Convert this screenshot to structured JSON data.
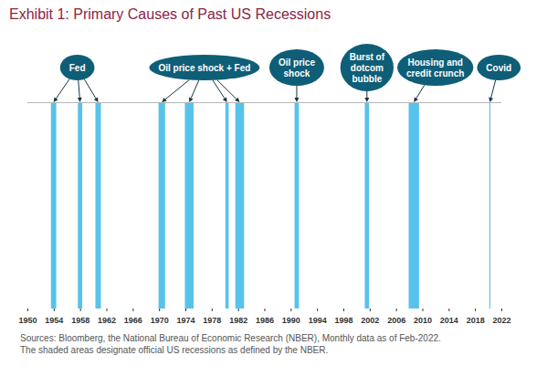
{
  "chart_data": {
    "type": "bar",
    "title": "Exhibit 1: Primary Causes of Past US Recessions",
    "caption": [
      "Sources: Bloomberg, the National Bureau of Economic Research (NBER), Monthly data as of Feb-2022.",
      "The shaded areas designate official US recessions as defined by the NBER."
    ],
    "recessions": [
      {
        "start": 1953.58,
        "end": 1954.38
      },
      {
        "start": 1957.67,
        "end": 1958.33
      },
      {
        "start": 1960.33,
        "end": 1961.17
      },
      {
        "start": 1969.92,
        "end": 1970.92
      },
      {
        "start": 1973.92,
        "end": 1975.25
      },
      {
        "start": 1980.08,
        "end": 1980.58
      },
      {
        "start": 1981.58,
        "end": 1982.92
      },
      {
        "start": 1990.58,
        "end": 1991.25
      },
      {
        "start": 2001.25,
        "end": 2001.92
      },
      {
        "start": 2007.92,
        "end": 2009.5
      },
      {
        "start": 2020.17,
        "end": 2020.33
      }
    ],
    "color": "#58c3ea",
    "annotations": [
      {
        "text": "Fed",
        "recessions": [
          0,
          1,
          2
        ]
      },
      {
        "text": "Oil price shock + Fed",
        "recessions": [
          3,
          4,
          5,
          6
        ]
      },
      {
        "text": "Oil price\nshock",
        "recessions": [
          7
        ]
      },
      {
        "text": "Burst of\ndotcom\nbubble",
        "recessions": [
          8
        ]
      },
      {
        "text": "Housing and\ncredit crunch",
        "recessions": [
          9
        ]
      },
      {
        "text": "Covid",
        "recessions": [
          10
        ]
      }
    ],
    "xlim": [
      1950,
      2022
    ],
    "xticks": [
      1950,
      1954,
      1958,
      1962,
      1966,
      1970,
      1974,
      1978,
      1982,
      1986,
      1990,
      1994,
      1998,
      2002,
      2006,
      2010,
      2014,
      2018,
      2022
    ],
    "ylim": [
      0,
      1
    ],
    "tick_labels": "x"
  }
}
